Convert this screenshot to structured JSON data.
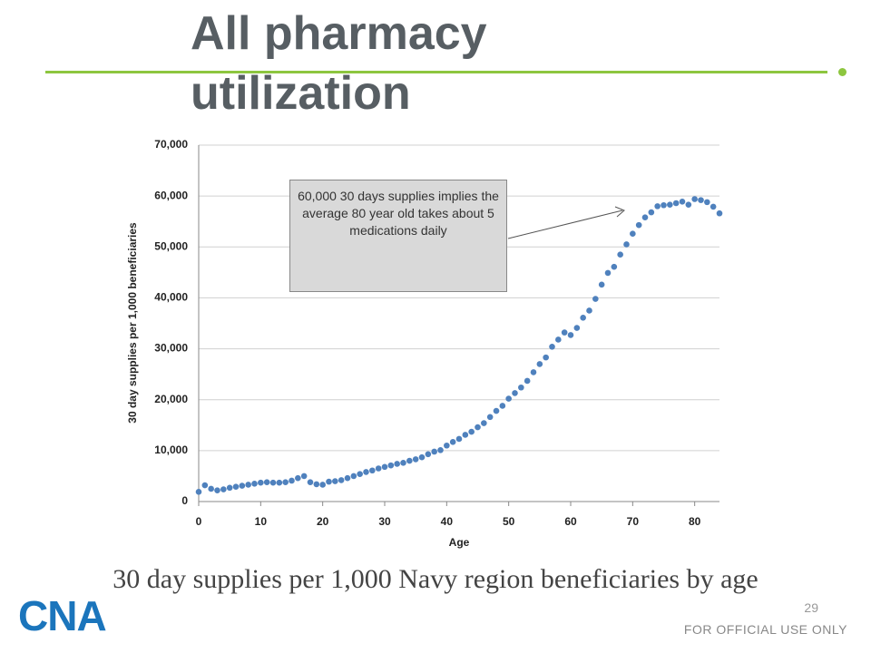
{
  "slide_title": "All pharmacy utilization",
  "caption": "30 day supplies per 1,000 Navy region beneficiaries by age",
  "page_number": "29",
  "footer": "FOR OFFICIAL USE ONLY",
  "logo": "CNA",
  "chart_data": {
    "type": "scatter",
    "x_label": "Age",
    "y_label": "30 day supplies per 1,000 beneficiaries",
    "annotation": "60,000 30 days supplies implies the average 80 year old takes about 5 medications daily",
    "color": "#4f81bd",
    "grid": true,
    "xlim": [
      0,
      84
    ],
    "xticks": [
      0,
      10,
      20,
      30,
      40,
      50,
      60,
      70,
      80
    ],
    "ylim": [
      0,
      70000
    ],
    "yticks": [
      0,
      {
        "value": 10000,
        "label": "10,000"
      },
      {
        "value": 20000,
        "label": "20,000"
      },
      {
        "value": 30000,
        "label": "30,000"
      },
      {
        "value": 40000,
        "label": "40,000"
      },
      {
        "value": 50000,
        "label": "50,000"
      },
      {
        "value": 60000,
        "label": "60,000"
      },
      {
        "value": 70000,
        "label": "70,000"
      }
    ],
    "x": [
      0,
      1,
      2,
      3,
      4,
      5,
      6,
      7,
      8,
      9,
      10,
      11,
      12,
      13,
      14,
      15,
      16,
      17,
      18,
      19,
      20,
      21,
      22,
      23,
      24,
      25,
      26,
      27,
      28,
      29,
      30,
      31,
      32,
      33,
      34,
      35,
      36,
      37,
      38,
      39,
      40,
      41,
      42,
      43,
      44,
      45,
      46,
      47,
      48,
      49,
      50,
      51,
      52,
      53,
      54,
      55,
      56,
      57,
      58,
      59,
      60,
      61,
      62,
      63,
      64,
      65,
      66,
      67,
      68,
      69,
      70,
      71,
      72,
      73,
      74,
      75,
      76,
      77,
      78,
      79,
      80,
      81,
      82,
      83,
      84
    ],
    "values": [
      1900,
      3200,
      2500,
      2200,
      2400,
      2700,
      2900,
      3100,
      3300,
      3500,
      3700,
      3800,
      3700,
      3700,
      3800,
      4100,
      4600,
      5000,
      3800,
      3400,
      3300,
      3900,
      4000,
      4200,
      4600,
      5000,
      5400,
      5800,
      6100,
      6500,
      6800,
      7100,
      7400,
      7600,
      8000,
      8300,
      8700,
      9300,
      9800,
      10100,
      11000,
      11700,
      12300,
      13100,
      13700,
      14600,
      15400,
      16600,
      17800,
      18800,
      20200,
      21300,
      22400,
      23700,
      25400,
      27000,
      28300,
      30400,
      31800,
      33200,
      32700,
      34100,
      36100,
      37500,
      39800,
      42600,
      44900,
      46100,
      48500,
      50500,
      52600,
      54300,
      55800,
      56800,
      58000,
      58200,
      58300,
      58600,
      58900,
      58300,
      59400,
      59200,
      58800,
      57900,
      56600
    ]
  }
}
